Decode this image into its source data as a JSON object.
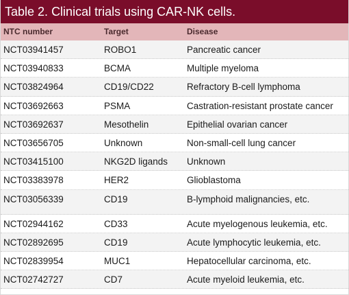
{
  "table": {
    "caption_number": "Table 2.",
    "caption_title": "Clinical trials using CAR-NK cells.",
    "headers": {
      "ntc": "NTC number",
      "target": "Target",
      "disease": "Disease"
    },
    "rows": [
      {
        "ntc": "NCT03941457",
        "target": "ROBO1",
        "disease": "Pancreatic cancer"
      },
      {
        "ntc": "NCT03940833",
        "target": "BCMA",
        "disease": "Multiple myeloma"
      },
      {
        "ntc": "NCT03824964",
        "target": "CD19/CD22",
        "disease": "Refractory B-cell lymphoma"
      },
      {
        "ntc": "NCT03692663",
        "target": "PSMA",
        "disease": "Castration-resistant prostate cancer"
      },
      {
        "ntc": "NCT03692637",
        "target": "Mesothelin",
        "disease": "Epithelial ovarian cancer"
      },
      {
        "ntc": "NCT03656705",
        "target": "Unknown",
        "disease": "Non-small-cell lung cancer"
      },
      {
        "ntc": "NCT03415100",
        "target": "NKG2D ligands",
        "disease": "Unknown"
      },
      {
        "ntc": "NCT03383978",
        "target": "HER2",
        "disease": "Glioblastoma"
      },
      {
        "ntc": "NCT03056339",
        "target": "CD19",
        "disease": "B-lymphoid malignancies, etc."
      },
      {
        "ntc": "NCT02944162",
        "target": "CD33",
        "disease": "Acute myelogenous leukemia, etc."
      },
      {
        "ntc": "NCT02892695",
        "target": "CD19",
        "disease": "Acute lymphocytic leukemia, etc."
      },
      {
        "ntc": "NCT02839954",
        "target": "MUC1",
        "disease": "Hepatocellular carcinoma, etc."
      },
      {
        "ntc": "NCT02742727",
        "target": "CD7",
        "disease": "Acute myeloid leukemia, etc."
      }
    ]
  },
  "colors": {
    "caption_bg": "#7a0d2a",
    "header_bg": "#e3b6b9",
    "stripe_bg": "#f3f3f3"
  }
}
